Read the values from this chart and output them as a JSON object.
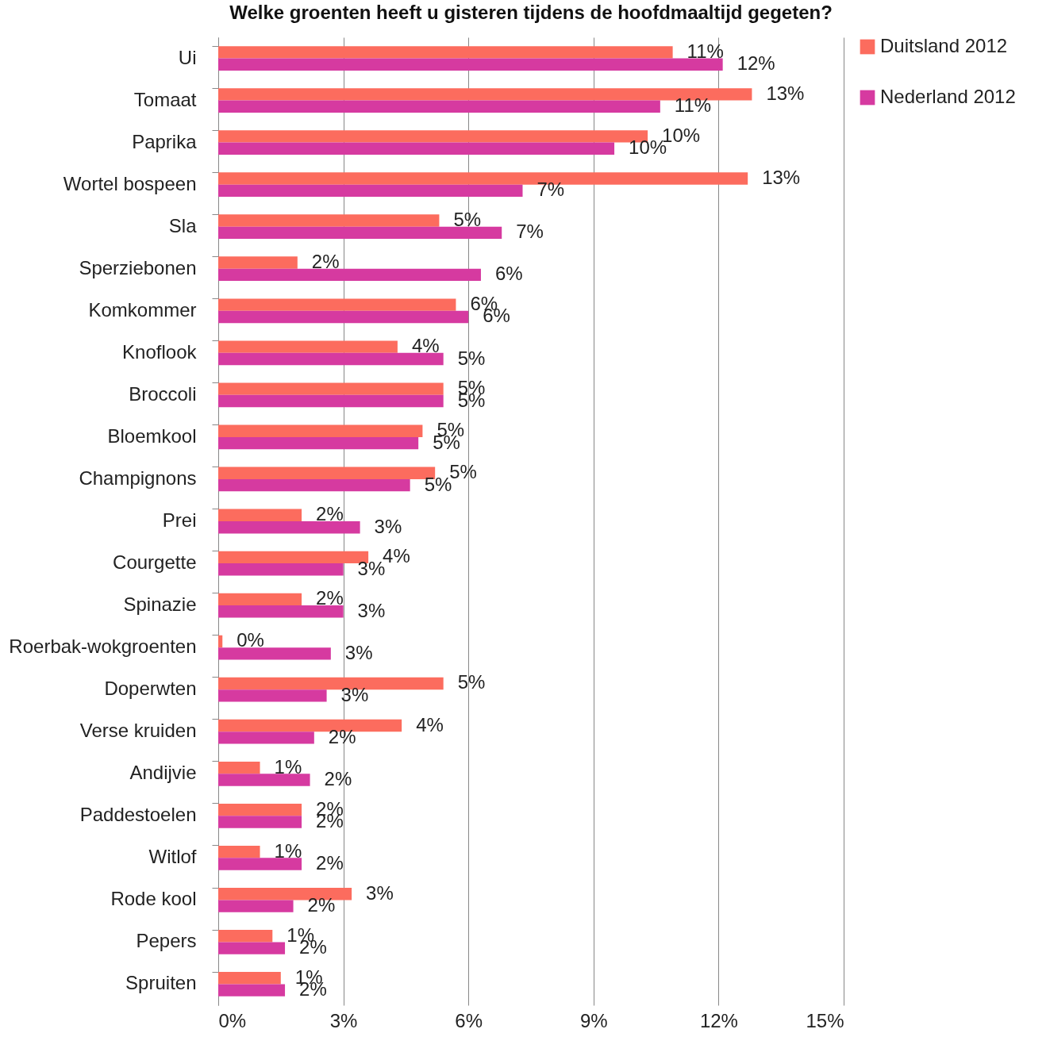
{
  "chart_data": {
    "type": "bar",
    "orientation": "horizontal",
    "title": "Welke groenten heeft u gisteren tijdens de hoofdmaaltijd gegeten?",
    "categories": [
      "Ui",
      "Tomaat",
      "Paprika",
      "Wortel bospeen",
      "Sla",
      "Sperziebonen",
      "Komkommer",
      "Knoflook",
      "Broccoli",
      "Bloemkool",
      "Champignons",
      "Prei",
      "Courgette",
      "Spinazie",
      "Roerbak-wokgroenten",
      "Doperwten",
      "Verse kruiden",
      "Andijvie",
      "Paddestoelen",
      "Witlof",
      "Rode kool",
      "Pepers",
      "Spruiten"
    ],
    "series": [
      {
        "name": "Duitsland 2012",
        "color": "#fc6c5e",
        "values": [
          10.9,
          12.8,
          10.3,
          12.7,
          5.3,
          1.9,
          5.7,
          4.3,
          5.4,
          4.9,
          5.2,
          2.0,
          3.6,
          2.0,
          0.1,
          5.4,
          4.4,
          1.0,
          2.0,
          1.0,
          3.2,
          1.3,
          1.5
        ],
        "value_labels": [
          "11%",
          "13%",
          "10%",
          "13%",
          "5%",
          "2%",
          "6%",
          "4%",
          "5%",
          "5%",
          "5%",
          "2%",
          "4%",
          "2%",
          "0%",
          "5%",
          "4%",
          "1%",
          "2%",
          "1%",
          "3%",
          "1%",
          "1%"
        ]
      },
      {
        "name": "Nederland 2012",
        "color": "#d63aa0",
        "values": [
          12.1,
          10.6,
          9.5,
          7.3,
          6.8,
          6.3,
          6.0,
          5.4,
          5.4,
          4.8,
          4.6,
          3.4,
          3.0,
          3.0,
          2.7,
          2.6,
          2.3,
          2.2,
          2.0,
          2.0,
          1.8,
          1.6,
          1.6
        ],
        "value_labels": [
          "12%",
          "11%",
          "10%",
          "7%",
          "7%",
          "6%",
          "6%",
          "5%",
          "5%",
          "5%",
          "5%",
          "3%",
          "3%",
          "3%",
          "3%",
          "3%",
          "2%",
          "2%",
          "2%",
          "2%",
          "2%",
          "2%",
          "2%"
        ]
      }
    ],
    "xlim": [
      0,
      15
    ],
    "xticks": [
      {
        "value": 0,
        "label": "0%"
      },
      {
        "value": 3,
        "label": "3%"
      },
      {
        "value": 6,
        "label": "6%"
      },
      {
        "value": 9,
        "label": "9%"
      },
      {
        "value": 12,
        "label": "12%"
      },
      {
        "value": 15,
        "label": "15%"
      }
    ],
    "grid": "x",
    "legend": "right"
  }
}
